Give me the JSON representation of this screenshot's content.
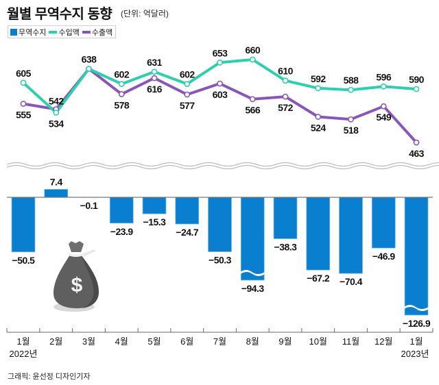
{
  "header": {
    "title": "월별 무역수지 동향",
    "unit": "(단위: 억달러)"
  },
  "legend": [
    {
      "label": "무역수지",
      "color": "#0a7fd0",
      "shape": "box"
    },
    {
      "label": "수입액",
      "color": "#2ecfae",
      "shape": "line"
    },
    {
      "label": "수출액",
      "color": "#8a55b8",
      "shape": "line"
    }
  ],
  "credit": "그래픽: 윤선정 디자인기자",
  "chart_data": [
    {
      "type": "line",
      "title": "수입액 / 수출액",
      "categories": [
        "1월",
        "2월",
        "3월",
        "4월",
        "5월",
        "6월",
        "7월",
        "8월",
        "9월",
        "10월",
        "11월",
        "12월",
        "1월"
      ],
      "series": [
        {
          "name": "수입액",
          "color": "#2ecfae",
          "values": [
            605,
            534,
            638,
            602,
            631,
            602,
            653,
            660,
            610,
            592,
            588,
            596,
            590
          ],
          "labels": [
            "605",
            "534",
            "638",
            "602",
            "631",
            "602",
            "653",
            "660",
            "610",
            "592",
            "588",
            "596",
            "590"
          ]
        },
        {
          "name": "수출액",
          "color": "#8a55b8",
          "values": [
            555,
            542,
            638,
            578,
            616,
            577,
            603,
            566,
            572,
            524,
            518,
            549,
            463
          ],
          "labels": [
            "555",
            "542",
            "",
            "578",
            "616",
            "577",
            "603",
            "566",
            "572",
            "524",
            "518",
            "549",
            "463"
          ]
        }
      ],
      "ylim": [
        463,
        660
      ],
      "grid": false,
      "legend": "top-left"
    },
    {
      "type": "bar",
      "title": "무역수지",
      "categories": [
        "1월",
        "2월",
        "3월",
        "4월",
        "5월",
        "6월",
        "7월",
        "8월",
        "9월",
        "10월",
        "11월",
        "12월",
        "1월"
      ],
      "year_labels": {
        "0": "2022년",
        "12": "2023년"
      },
      "values": [
        -50.5,
        7.4,
        -0.1,
        -23.9,
        -15.3,
        -24.7,
        -50.3,
        -94.3,
        -38.3,
        -67.2,
        -70.4,
        -46.9,
        -126.9
      ],
      "labels": [
        "−50.5",
        "7.4",
        "−0.1",
        "−23.9",
        "−15.3",
        "−24.7",
        "−50.3",
        "−94.3",
        "−38.3",
        "−67.2",
        "−70.4",
        "−46.9",
        "−126.9"
      ],
      "broken_axis_bars": [
        7,
        12
      ],
      "color": "#0a7fd0",
      "grid": false
    }
  ]
}
